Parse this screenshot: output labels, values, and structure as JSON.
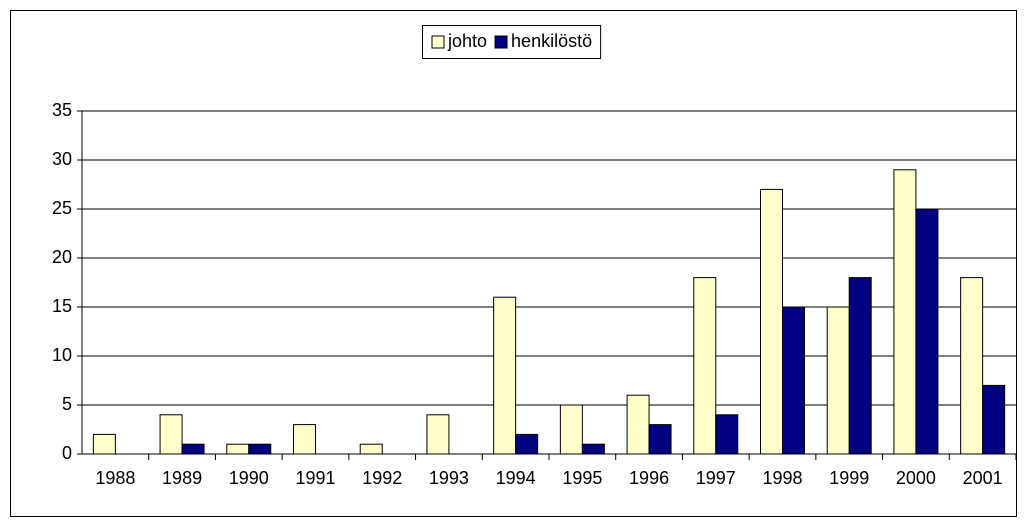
{
  "chart_data": {
    "type": "bar",
    "categories": [
      "1988",
      "1989",
      "1990",
      "1991",
      "1992",
      "1993",
      "1994",
      "1995",
      "1996",
      "1997",
      "1998",
      "1999",
      "2000",
      "2001"
    ],
    "series": [
      {
        "name": "johto",
        "color": "#ffffcc",
        "values": [
          2,
          4,
          1,
          3,
          1,
          4,
          16,
          5,
          6,
          18,
          27,
          15,
          29,
          18
        ]
      },
      {
        "name": "henkilöstö",
        "color": "#000080",
        "values": [
          0,
          1,
          1,
          0,
          0,
          0,
          2,
          1,
          3,
          4,
          15,
          18,
          25,
          7
        ]
      }
    ],
    "ylim": [
      0,
      35
    ],
    "yticks": [
      0,
      5,
      10,
      15,
      20,
      25,
      30,
      35
    ],
    "grid": true,
    "legend": "top"
  }
}
